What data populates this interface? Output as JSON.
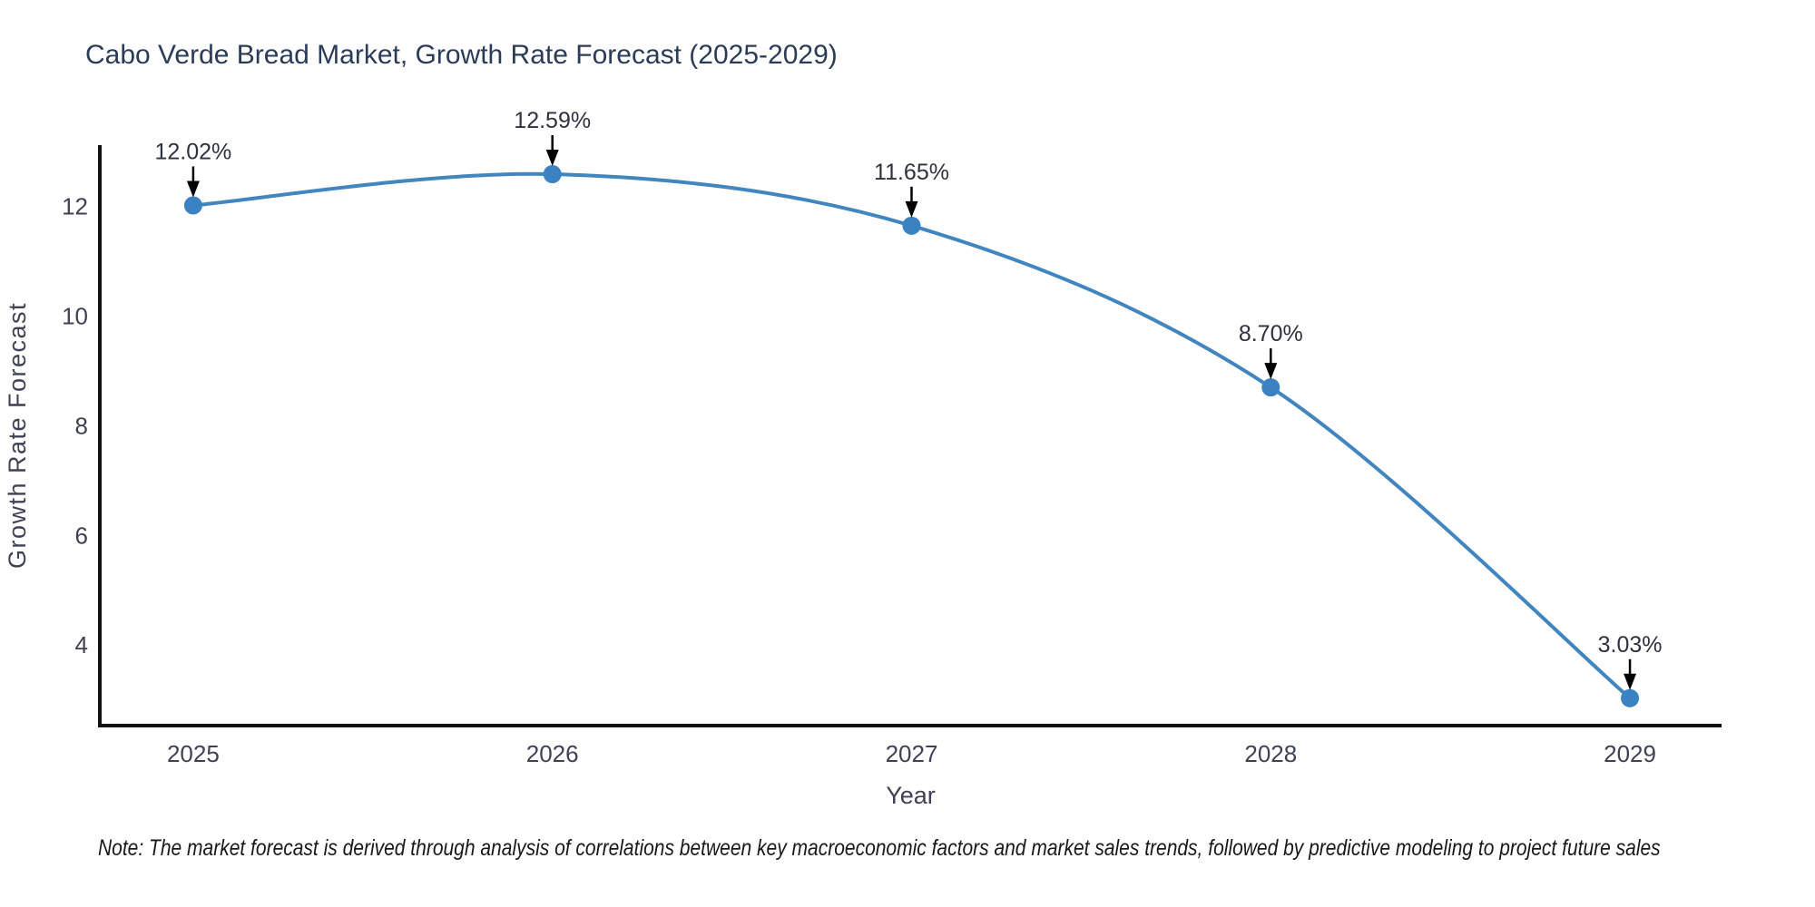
{
  "figure": {
    "note": "Note: The market forecast is derived through analysis of correlations between key macroeconomic factors and market sales trends, followed by predictive modeling to project future sales"
  },
  "chart_data": {
    "type": "line",
    "curve": "spline",
    "title": "Cabo Verde Bread Market, Growth Rate Forecast (2025-2029)",
    "xlabel": "Year",
    "ylabel": "Growth Rate Forecast",
    "x": [
      2025,
      2026,
      2027,
      2028,
      2029
    ],
    "values": [
      12.02,
      12.59,
      11.65,
      8.7,
      3.03
    ],
    "point_labels": [
      "12.02%",
      "12.59%",
      "11.65%",
      "8.70%",
      "3.03%"
    ],
    "x_tick_labels": [
      "2025",
      "2026",
      "2027",
      "2028",
      "2029"
    ],
    "y_ticks": [
      4,
      6,
      8,
      10,
      12
    ],
    "x_range": [
      2024.74,
      2029.255
    ],
    "y_range": [
      2.53,
      13.12
    ],
    "grid": false,
    "legend": "none",
    "annotations_have_arrows": true
  },
  "colors": {
    "line": "#4286c0",
    "marker": "#3b82c2",
    "axis": "#111111",
    "tick_label": "#3f4254",
    "title": "#2b3c59",
    "axis_title": "#3f4254",
    "annotation_text": "#2e3140",
    "arrow": "#000000",
    "note_text": "#191919",
    "background": "#ffffff"
  }
}
